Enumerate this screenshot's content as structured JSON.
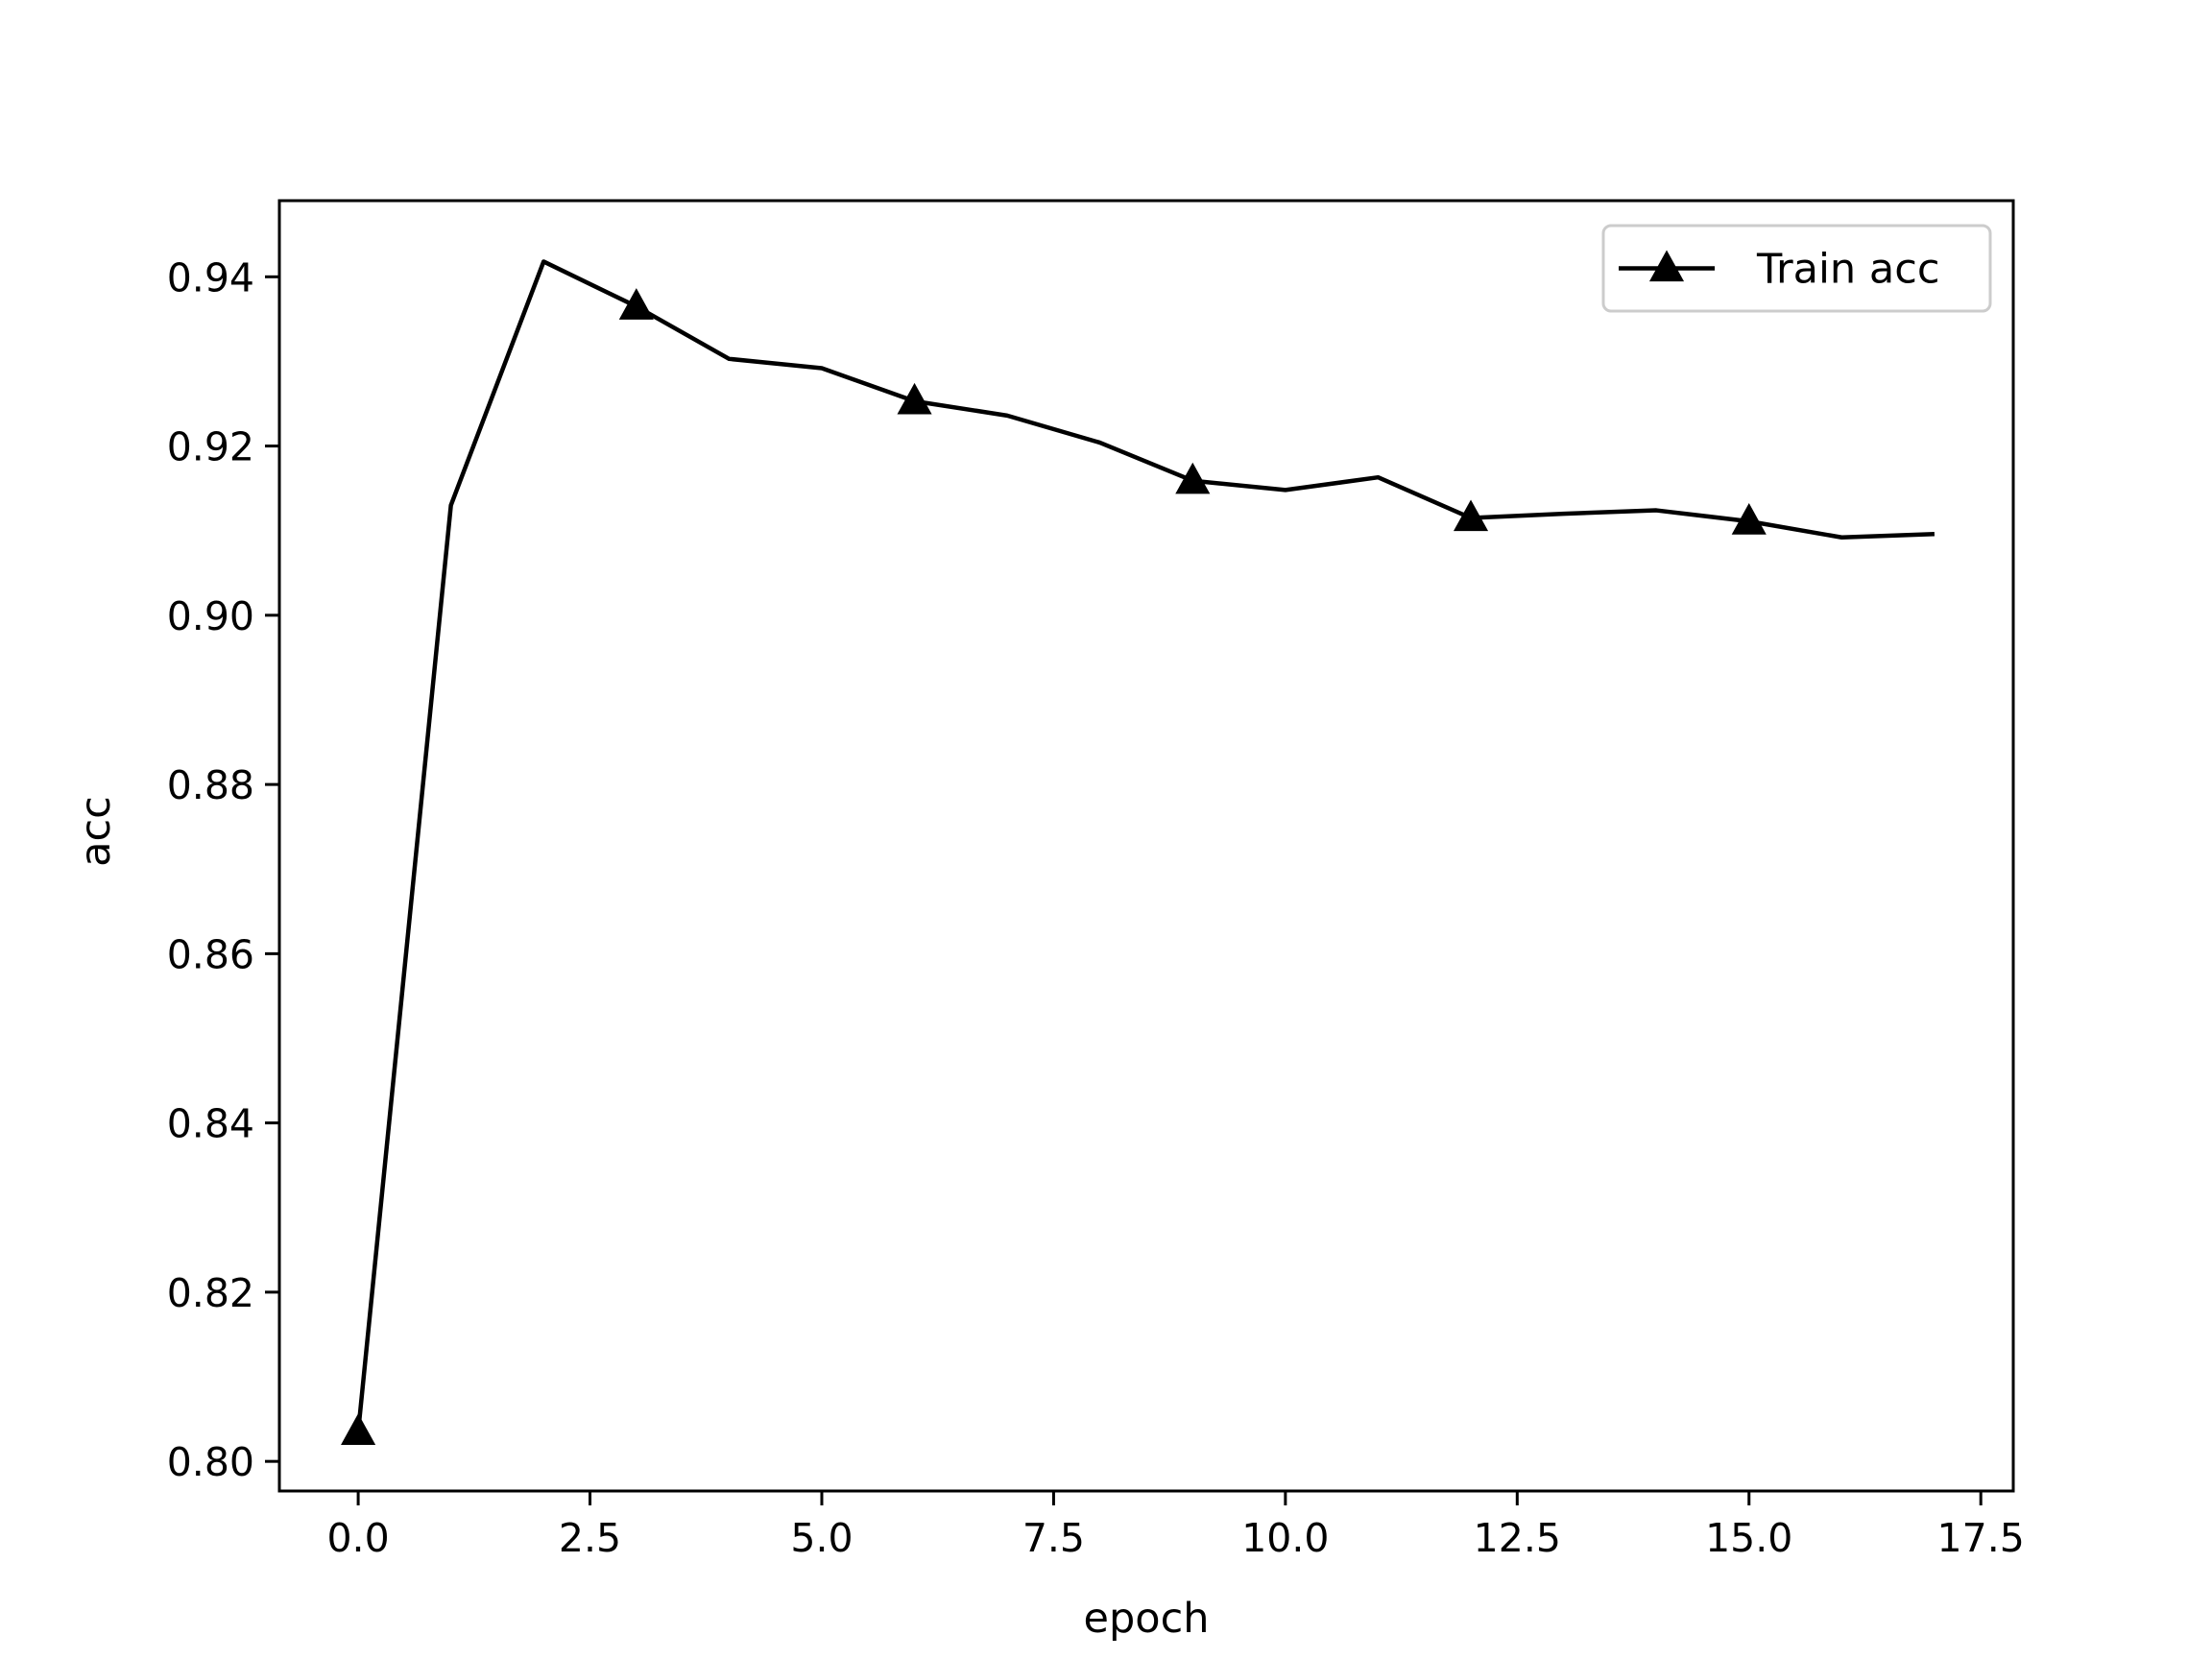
{
  "chart_data": {
    "type": "line",
    "title": "",
    "xlabel": "epoch",
    "ylabel": "acc",
    "xlim": [
      -0.85,
      17.85
    ],
    "ylim": [
      0.7965,
      0.949
    ],
    "xticks": [
      0.0,
      2.5,
      5.0,
      7.5,
      10.0,
      12.5,
      15.0,
      17.5
    ],
    "xtick_labels": [
      "0.0",
      "2.5",
      "5.0",
      "7.5",
      "10.0",
      "12.5",
      "15.0",
      "17.5"
    ],
    "yticks": [
      0.8,
      0.82,
      0.84,
      0.86,
      0.88,
      0.9,
      0.92,
      0.94
    ],
    "ytick_labels": [
      "0.80",
      "0.82",
      "0.84",
      "0.86",
      "0.88",
      "0.90",
      "0.92",
      "0.94"
    ],
    "grid": false,
    "legend_position": "upper right",
    "series": [
      {
        "name": "Train acc",
        "color": "#000000",
        "marker": "triangle-up",
        "marker_every": 3,
        "x": [
          0,
          1,
          2,
          3,
          4,
          5,
          6,
          7,
          8,
          9,
          10,
          11,
          12,
          13,
          14,
          15,
          16,
          17
        ],
        "y": [
          0.8035,
          0.913,
          0.9418,
          0.9365,
          0.9303,
          0.9292,
          0.9253,
          0.9236,
          0.9204,
          0.9159,
          0.9148,
          0.9163,
          0.9115,
          0.912,
          0.9124,
          0.9111,
          0.9092,
          0.9096
        ]
      }
    ]
  }
}
